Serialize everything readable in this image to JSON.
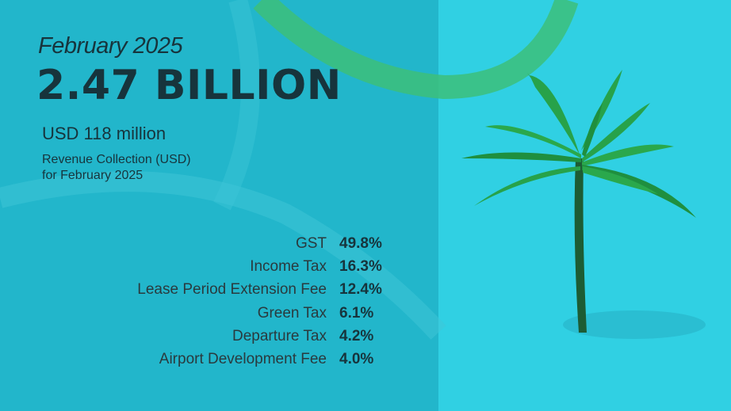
{
  "header": {
    "period": "February 2025",
    "headline": "2.47 BILLION",
    "usd_amount": "USD 118 million",
    "description": [
      "Revenue Collection (USD)",
      "for February 2025"
    ]
  },
  "breakdown": [
    {
      "label": "GST",
      "value": "49.8%"
    },
    {
      "label": "Income Tax",
      "value": "16.3%"
    },
    {
      "label": "Lease Period Extension Fee",
      "value": "12.4%"
    },
    {
      "label": "Green Tax",
      "value": "6.1%"
    },
    {
      "label": "Departure Tax",
      "value": "4.2%"
    },
    {
      "label": "Airport Development Fee",
      "value": "4.0%"
    }
  ]
}
